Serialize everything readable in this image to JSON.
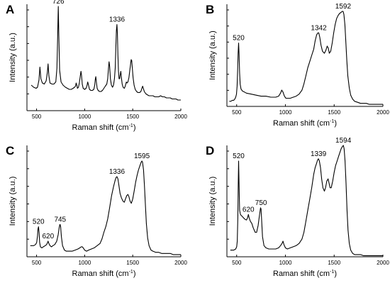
{
  "chart_data": [
    {
      "type": "line",
      "panel_label": "A",
      "xlabel": "Raman shift (cm",
      "xlabel_sup": "-1",
      "xlabel_end": ")",
      "ylabel": "Intensity (a.u.)",
      "xlim": [
        400,
        2000
      ],
      "ylim": [
        0,
        1
      ],
      "xticks": [
        500,
        1000,
        1500,
        2000
      ],
      "yticks_visible": false,
      "grid": false,
      "annotations": [
        {
          "x": 726,
          "y": 0.98,
          "text": "726"
        },
        {
          "x": 1336,
          "y": 0.81,
          "text": "1336"
        }
      ],
      "series": [
        {
          "x": [
            445,
            470,
            495,
            510,
            525,
            535,
            545,
            560,
            580,
            600,
            612,
            620,
            628,
            640,
            660,
            680,
            700,
            712,
            720,
            726,
            732,
            740,
            755,
            775,
            800,
            820,
            840,
            860,
            880,
            895,
            905,
            912,
            918,
            925,
            935,
            945,
            955,
            962,
            968,
            975,
            985,
            1000,
            1015,
            1025,
            1032,
            1040,
            1050,
            1065,
            1080,
            1095,
            1105,
            1110,
            1116,
            1122,
            1130,
            1140,
            1155,
            1170,
            1185,
            1200,
            1215,
            1230,
            1240,
            1248,
            1254,
            1260,
            1268,
            1278,
            1290,
            1300,
            1310,
            1318,
            1324,
            1330,
            1336,
            1341,
            1346,
            1352,
            1358,
            1364,
            1370,
            1376,
            1382,
            1390,
            1400,
            1412,
            1422,
            1428,
            1434,
            1440,
            1450,
            1460,
            1470,
            1478,
            1484,
            1490,
            1496,
            1504,
            1514,
            1526,
            1540,
            1555,
            1570,
            1585,
            1595,
            1603,
            1610,
            1620,
            1635,
            1650,
            1670,
            1690,
            1710,
            1730,
            1750,
            1770,
            1790,
            1810,
            1830,
            1850,
            1870,
            1890,
            1910,
            1930,
            1950,
            1970,
            1990,
            2000
          ],
          "y": [
            0.24,
            0.22,
            0.21,
            0.22,
            0.29,
            0.41,
            0.3,
            0.26,
            0.25,
            0.28,
            0.36,
            0.44,
            0.33,
            0.26,
            0.25,
            0.25,
            0.27,
            0.4,
            0.72,
            0.98,
            0.7,
            0.38,
            0.27,
            0.24,
            0.22,
            0.21,
            0.2,
            0.2,
            0.21,
            0.22,
            0.23,
            0.26,
            0.24,
            0.21,
            0.22,
            0.26,
            0.33,
            0.37,
            0.33,
            0.25,
            0.21,
            0.2,
            0.21,
            0.24,
            0.27,
            0.24,
            0.2,
            0.19,
            0.19,
            0.2,
            0.24,
            0.29,
            0.32,
            0.27,
            0.21,
            0.19,
            0.18,
            0.18,
            0.19,
            0.21,
            0.23,
            0.25,
            0.3,
            0.4,
            0.46,
            0.42,
            0.3,
            0.24,
            0.22,
            0.24,
            0.3,
            0.4,
            0.58,
            0.75,
            0.81,
            0.72,
            0.52,
            0.37,
            0.3,
            0.3,
            0.34,
            0.37,
            0.31,
            0.25,
            0.22,
            0.21,
            0.23,
            0.25,
            0.27,
            0.26,
            0.27,
            0.31,
            0.38,
            0.44,
            0.48,
            0.47,
            0.4,
            0.31,
            0.24,
            0.2,
            0.18,
            0.17,
            0.17,
            0.18,
            0.21,
            0.23,
            0.21,
            0.18,
            0.16,
            0.15,
            0.14,
            0.14,
            0.14,
            0.13,
            0.13,
            0.13,
            0.14,
            0.13,
            0.13,
            0.12,
            0.12,
            0.12,
            0.11,
            0.11,
            0.11,
            0.1,
            0.1,
            0.1
          ]
        }
      ]
    },
    {
      "type": "line",
      "panel_label": "B",
      "xlabel": "Raman shift (cm",
      "xlabel_sup": "-1",
      "xlabel_end": ")",
      "ylabel": "Intensity (a.u.)",
      "xlim": [
        400,
        2000
      ],
      "ylim": [
        0,
        1
      ],
      "xticks": [
        500,
        1000,
        1500,
        2000
      ],
      "yticks_visible": false,
      "grid": false,
      "annotations": [
        {
          "x": 520,
          "y": 0.62,
          "text": "520"
        },
        {
          "x": 1342,
          "y": 0.72,
          "text": "1342"
        },
        {
          "x": 1592,
          "y": 0.93,
          "text": "1592"
        }
      ],
      "series": [
        {
          "x": [
            425,
            440,
            455,
            470,
            480,
            490,
            498,
            505,
            510,
            515,
            520,
            525,
            530,
            536,
            545,
            560,
            580,
            600,
            650,
            700,
            750,
            800,
            850,
            900,
            930,
            950,
            962,
            975,
            990,
            1005,
            1020,
            1050,
            1080,
            1110,
            1140,
            1170,
            1190,
            1210,
            1230,
            1250,
            1270,
            1290,
            1305,
            1320,
            1333,
            1342,
            1352,
            1365,
            1380,
            1400,
            1415,
            1428,
            1440,
            1450,
            1465,
            1480,
            1495,
            1510,
            1525,
            1540,
            1555,
            1570,
            1582,
            1592,
            1600,
            1610,
            1620,
            1630,
            1640,
            1655,
            1670,
            1690,
            1710,
            1740,
            1770,
            1800,
            1830,
            1860,
            1890,
            1920,
            1950,
            1980,
            2000
          ],
          "y": [
            0.05,
            0.05,
            0.06,
            0.06,
            0.07,
            0.09,
            0.12,
            0.2,
            0.35,
            0.52,
            0.62,
            0.5,
            0.33,
            0.22,
            0.17,
            0.15,
            0.14,
            0.13,
            0.12,
            0.11,
            0.1,
            0.1,
            0.09,
            0.09,
            0.1,
            0.13,
            0.16,
            0.14,
            0.1,
            0.08,
            0.08,
            0.08,
            0.09,
            0.1,
            0.12,
            0.16,
            0.22,
            0.3,
            0.38,
            0.44,
            0.5,
            0.56,
            0.64,
            0.7,
            0.72,
            0.72,
            0.68,
            0.6,
            0.54,
            0.52,
            0.55,
            0.59,
            0.57,
            0.52,
            0.54,
            0.62,
            0.72,
            0.8,
            0.86,
            0.89,
            0.91,
            0.92,
            0.93,
            0.93,
            0.9,
            0.8,
            0.62,
            0.45,
            0.3,
            0.18,
            0.11,
            0.07,
            0.05,
            0.04,
            0.03,
            0.03,
            0.03,
            0.02,
            0.02,
            0.02,
            0.02,
            0.02,
            0.02
          ]
        }
      ]
    },
    {
      "type": "line",
      "panel_label": "C",
      "xlabel": "Raman shift (cm",
      "xlabel_sup": "-1",
      "xlabel_end": ")",
      "ylabel": "Intensity (a.u.)",
      "xlim": [
        400,
        2000
      ],
      "ylim": [
        0,
        1
      ],
      "xticks": [
        500,
        1000,
        1500,
        2000
      ],
      "yticks_visible": false,
      "grid": false,
      "annotations": [
        {
          "x": 520,
          "y": 0.27,
          "text": "520"
        },
        {
          "x": 620,
          "y": 0.14,
          "text": "620"
        },
        {
          "x": 745,
          "y": 0.29,
          "text": "745"
        },
        {
          "x": 1336,
          "y": 0.72,
          "text": "1336"
        },
        {
          "x": 1595,
          "y": 0.86,
          "text": "1595"
        }
      ],
      "series": [
        {
          "x": [
            435,
            450,
            470,
            490,
            502,
            510,
            515,
            520,
            526,
            532,
            540,
            555,
            570,
            590,
            605,
            615,
            620,
            628,
            640,
            655,
            670,
            690,
            710,
            725,
            735,
            742,
            745,
            750,
            758,
            770,
            790,
            810,
            840,
            870,
            900,
            930,
            950,
            965,
            975,
            985,
            1000,
            1020,
            1040,
            1070,
            1100,
            1130,
            1160,
            1180,
            1200,
            1220,
            1240,
            1260,
            1280,
            1300,
            1315,
            1325,
            1336,
            1346,
            1356,
            1368,
            1382,
            1398,
            1412,
            1425,
            1438,
            1450,
            1460,
            1472,
            1485,
            1500,
            1515,
            1530,
            1545,
            1560,
            1575,
            1588,
            1595,
            1602,
            1612,
            1622,
            1632,
            1642,
            1655,
            1670,
            1690,
            1710,
            1740,
            1770,
            1800,
            1830,
            1860,
            1890,
            1920,
            1950,
            1980,
            2000
          ],
          "y": [
            0.1,
            0.1,
            0.1,
            0.11,
            0.13,
            0.19,
            0.25,
            0.27,
            0.22,
            0.13,
            0.09,
            0.08,
            0.09,
            0.1,
            0.11,
            0.13,
            0.14,
            0.12,
            0.1,
            0.09,
            0.1,
            0.11,
            0.14,
            0.2,
            0.26,
            0.29,
            0.29,
            0.27,
            0.18,
            0.1,
            0.06,
            0.05,
            0.05,
            0.05,
            0.06,
            0.07,
            0.08,
            0.09,
            0.09,
            0.08,
            0.06,
            0.05,
            0.06,
            0.07,
            0.08,
            0.1,
            0.12,
            0.16,
            0.22,
            0.27,
            0.34,
            0.44,
            0.55,
            0.63,
            0.68,
            0.71,
            0.72,
            0.7,
            0.64,
            0.57,
            0.53,
            0.5,
            0.49,
            0.52,
            0.55,
            0.56,
            0.54,
            0.5,
            0.48,
            0.52,
            0.59,
            0.67,
            0.73,
            0.78,
            0.82,
            0.85,
            0.86,
            0.85,
            0.78,
            0.64,
            0.46,
            0.3,
            0.17,
            0.1,
            0.06,
            0.05,
            0.04,
            0.04,
            0.03,
            0.03,
            0.03,
            0.03,
            0.02,
            0.02,
            0.02,
            0.02
          ]
        }
      ]
    },
    {
      "type": "line",
      "panel_label": "D",
      "xlabel": "Raman shift (cm",
      "xlabel_sup": "-1",
      "xlabel_end": ")",
      "ylabel": "Intensity (a.u.)",
      "xlim": [
        400,
        2000
      ],
      "ylim": [
        0,
        1
      ],
      "xticks": [
        500,
        1000,
        1500,
        2000
      ],
      "yticks_visible": false,
      "grid": false,
      "annotations": [
        {
          "x": 520,
          "y": 0.86,
          "text": "520"
        },
        {
          "x": 620,
          "y": 0.38,
          "text": "620"
        },
        {
          "x": 750,
          "y": 0.44,
          "text": "750"
        },
        {
          "x": 1339,
          "y": 0.88,
          "text": "1339"
        },
        {
          "x": 1594,
          "y": 1.0,
          "text": "1594"
        }
      ],
      "series": [
        {
          "x": [
            435,
            450,
            470,
            490,
            500,
            506,
            512,
            516,
            520,
            524,
            530,
            538,
            548,
            560,
            580,
            600,
            612,
            620,
            628,
            640,
            655,
            670,
            690,
            705,
            720,
            735,
            745,
            750,
            756,
            765,
            780,
            800,
            830,
            860,
            900,
            930,
            950,
            965,
            975,
            985,
            1000,
            1020,
            1050,
            1080,
            1110,
            1140,
            1170,
            1190,
            1210,
            1230,
            1250,
            1270,
            1290,
            1305,
            1320,
            1330,
            1339,
            1348,
            1360,
            1372,
            1385,
            1400,
            1412,
            1425,
            1438,
            1448,
            1458,
            1470,
            1485,
            1500,
            1515,
            1530,
            1545,
            1560,
            1572,
            1584,
            1594,
            1602,
            1612,
            1622,
            1632,
            1642,
            1655,
            1670,
            1690,
            1710,
            1740,
            1770,
            1800,
            1830,
            1860,
            1890,
            1920,
            1950,
            1980,
            2000
          ],
          "y": [
            0.06,
            0.06,
            0.06,
            0.07,
            0.09,
            0.14,
            0.35,
            0.62,
            0.86,
            0.66,
            0.42,
            0.38,
            0.37,
            0.36,
            0.34,
            0.33,
            0.35,
            0.38,
            0.35,
            0.32,
            0.3,
            0.26,
            0.22,
            0.22,
            0.28,
            0.38,
            0.44,
            0.43,
            0.34,
            0.18,
            0.1,
            0.08,
            0.07,
            0.07,
            0.07,
            0.08,
            0.1,
            0.12,
            0.14,
            0.11,
            0.08,
            0.07,
            0.08,
            0.09,
            0.1,
            0.12,
            0.16,
            0.22,
            0.32,
            0.42,
            0.52,
            0.62,
            0.74,
            0.8,
            0.84,
            0.87,
            0.88,
            0.86,
            0.8,
            0.7,
            0.62,
            0.59,
            0.62,
            0.68,
            0.7,
            0.66,
            0.62,
            0.62,
            0.68,
            0.76,
            0.82,
            0.86,
            0.9,
            0.94,
            0.97,
            0.99,
            1.0,
            0.97,
            0.86,
            0.66,
            0.42,
            0.24,
            0.12,
            0.06,
            0.03,
            0.02,
            0.02,
            0.02,
            0.01,
            0.01,
            0.01,
            0.01,
            0.01,
            0.01,
            0.01,
            0.01
          ]
        }
      ]
    }
  ]
}
